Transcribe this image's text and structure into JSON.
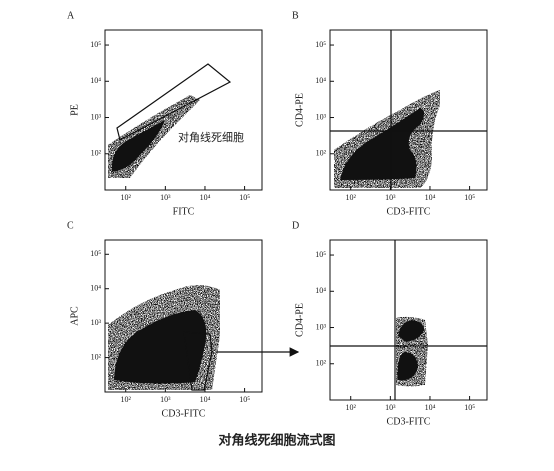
{
  "chart_data": [
    {
      "type": "scatter",
      "title": "A",
      "xlabel": "FITC",
      "ylabel": "PE",
      "annotation": "对角线死细胞",
      "log_scale": true,
      "xlim": [
        30,
        275000
      ],
      "ylim": [
        10,
        260000
      ],
      "xticks": [
        {
          "value": 100,
          "label": "10²"
        },
        {
          "value": 1000,
          "label": "10³"
        },
        {
          "value": 10000,
          "label": "10⁴"
        },
        {
          "value": 100000,
          "label": "10⁵"
        }
      ],
      "yticks": [
        {
          "value": 100,
          "label": "10²"
        },
        {
          "value": 1000,
          "label": "10³"
        },
        {
          "value": 10000,
          "label": "10⁴"
        },
        {
          "value": 100000,
          "label": "10⁵"
        }
      ]
    },
    {
      "type": "scatter",
      "title": "B",
      "xlabel": "CD3-FITC",
      "ylabel": "CD4-PE",
      "log_scale": true,
      "xlim": [
        30,
        275000
      ],
      "ylim": [
        10,
        260000
      ],
      "xticks": [
        {
          "value": 100,
          "label": "10²"
        },
        {
          "value": 1000,
          "label": "10³"
        },
        {
          "value": 10000,
          "label": "10⁴"
        },
        {
          "value": 100000,
          "label": "10⁵"
        }
      ],
      "yticks": [
        {
          "value": 100,
          "label": "10²"
        },
        {
          "value": 1000,
          "label": "10³"
        },
        {
          "value": 10000,
          "label": "10⁴"
        },
        {
          "value": 100000,
          "label": "10⁵"
        }
      ]
    },
    {
      "type": "scatter",
      "title": "C",
      "xlabel": "CD3-FITC",
      "ylabel": "APC",
      "log_scale": true,
      "xlim": [
        30,
        275000
      ],
      "ylim": [
        10,
        260000
      ],
      "xticks": [
        {
          "value": 100,
          "label": "10²"
        },
        {
          "value": 1000,
          "label": "10³"
        },
        {
          "value": 10000,
          "label": "10⁴"
        },
        {
          "value": 100000,
          "label": "10⁵"
        }
      ],
      "yticks": [
        {
          "value": 100,
          "label": "10²"
        },
        {
          "value": 1000,
          "label": "10³"
        },
        {
          "value": 10000,
          "label": "10⁴"
        },
        {
          "value": 100000,
          "label": "10⁵"
        }
      ]
    },
    {
      "type": "scatter",
      "title": "D",
      "xlabel": "CD3-FITC",
      "ylabel": "CD4-PE",
      "log_scale": true,
      "xlim": [
        30,
        275000
      ],
      "ylim": [
        10,
        260000
      ],
      "xticks": [
        {
          "value": 100,
          "label": "10²"
        },
        {
          "value": 1000,
          "label": "10³"
        },
        {
          "value": 10000,
          "label": "10⁴"
        },
        {
          "value": 100000,
          "label": "10⁵"
        }
      ],
      "yticks": [
        {
          "value": 100,
          "label": "10²"
        },
        {
          "value": 1000,
          "label": "10³"
        },
        {
          "value": 10000,
          "label": "10⁴"
        },
        {
          "value": 100000,
          "label": "10⁵"
        }
      ]
    }
  ],
  "caption": "对角线死细胞流式图"
}
